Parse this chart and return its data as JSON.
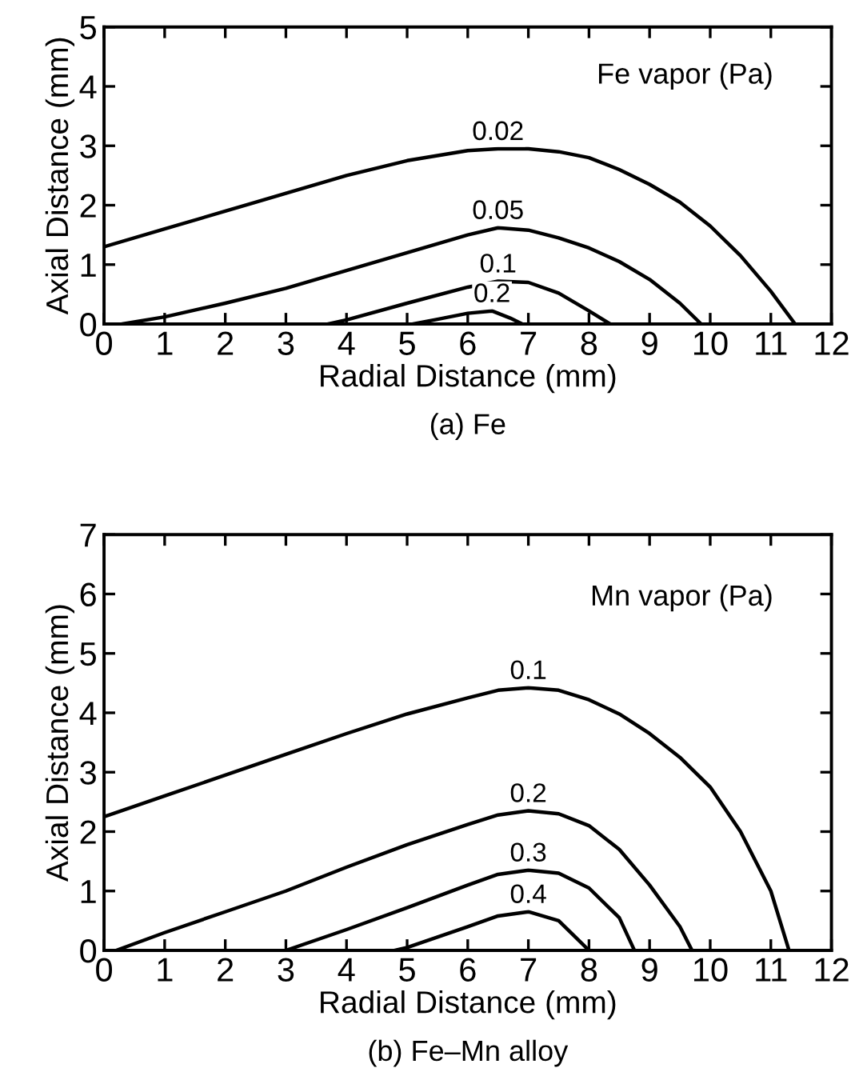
{
  "chart_data": [
    {
      "type": "line",
      "title": "(a) Fe",
      "xlabel": "Radial Distance (mm)",
      "ylabel": "Axial Distance (mm)",
      "annotations": [
        "Fe vapor (Pa)"
      ],
      "xlim": [
        0,
        12
      ],
      "ylim": [
        0,
        5
      ],
      "xticks": [
        0,
        1,
        2,
        3,
        4,
        5,
        6,
        7,
        8,
        9,
        10,
        11,
        12
      ],
      "yticks": [
        0,
        1,
        2,
        3,
        4,
        5
      ],
      "grid": false,
      "legend": false,
      "marker": "none",
      "line_style": "solid",
      "series": [
        {
          "name": "0.02",
          "color": "#000000",
          "x": [
            0,
            1,
            2,
            3,
            4,
            5,
            6,
            6.5,
            7,
            7.5,
            8,
            8.5,
            9,
            9.5,
            10,
            10.5,
            11,
            11.4
          ],
          "values": [
            1.3,
            1.6,
            1.9,
            2.2,
            2.5,
            2.75,
            2.92,
            2.95,
            2.95,
            2.9,
            2.8,
            2.6,
            2.35,
            2.05,
            1.65,
            1.15,
            0.55,
            0
          ]
        },
        {
          "name": "0.05",
          "color": "#000000",
          "x": [
            0.3,
            1,
            2,
            3,
            4,
            5,
            6,
            6.5,
            7,
            7.5,
            8,
            8.5,
            9,
            9.5,
            9.85
          ],
          "values": [
            0,
            0.12,
            0.35,
            0.6,
            0.9,
            1.2,
            1.5,
            1.62,
            1.58,
            1.45,
            1.28,
            1.05,
            0.75,
            0.35,
            0
          ]
        },
        {
          "name": "0.1",
          "color": "#000000",
          "x": [
            3.7,
            4,
            5,
            6,
            6.5,
            7,
            7.5,
            8,
            8.35
          ],
          "values": [
            0,
            0.07,
            0.35,
            0.62,
            0.72,
            0.7,
            0.52,
            0.22,
            0
          ]
        },
        {
          "name": "0.2",
          "color": "#000000",
          "x": [
            5.1,
            5.5,
            6,
            6.4,
            6.7,
            6.9
          ],
          "values": [
            0,
            0.08,
            0.18,
            0.22,
            0.1,
            0
          ]
        }
      ]
    },
    {
      "type": "line",
      "title": "(b) Fe–Mn alloy",
      "xlabel": "Radial Distance (mm)",
      "ylabel": "Axial Distance (mm)",
      "annotations": [
        "Mn vapor (Pa)"
      ],
      "xlim": [
        0,
        12
      ],
      "ylim": [
        0,
        7
      ],
      "xticks": [
        0,
        1,
        2,
        3,
        4,
        5,
        6,
        7,
        8,
        9,
        10,
        11,
        12
      ],
      "yticks": [
        0,
        1,
        2,
        3,
        4,
        5,
        6,
        7
      ],
      "grid": false,
      "legend": false,
      "marker": "none",
      "line_style": "solid",
      "series": [
        {
          "name": "0.1",
          "color": "#000000",
          "x": [
            0,
            1,
            2,
            3,
            4,
            5,
            6,
            6.5,
            7,
            7.5,
            8,
            8.5,
            9,
            9.5,
            10,
            10.5,
            11,
            11.3
          ],
          "values": [
            2.25,
            2.6,
            2.95,
            3.3,
            3.65,
            3.98,
            4.25,
            4.38,
            4.42,
            4.38,
            4.22,
            3.98,
            3.65,
            3.25,
            2.75,
            2.0,
            1.0,
            0
          ]
        },
        {
          "name": "0.2",
          "color": "#000000",
          "x": [
            0.2,
            1,
            2,
            3,
            4,
            5,
            6,
            6.5,
            7,
            7.5,
            8,
            8.5,
            9,
            9.5,
            9.7
          ],
          "values": [
            0,
            0.3,
            0.65,
            1.0,
            1.4,
            1.78,
            2.12,
            2.28,
            2.35,
            2.3,
            2.1,
            1.7,
            1.1,
            0.4,
            0
          ]
        },
        {
          "name": "0.3",
          "color": "#000000",
          "x": [
            3,
            4,
            5,
            6,
            6.5,
            7,
            7.5,
            8,
            8.5,
            8.75
          ],
          "values": [
            0,
            0.35,
            0.72,
            1.1,
            1.28,
            1.35,
            1.3,
            1.05,
            0.55,
            0
          ]
        },
        {
          "name": "0.4",
          "color": "#000000",
          "x": [
            4.8,
            5,
            6,
            6.5,
            7,
            7.5,
            7.8,
            8
          ],
          "values": [
            0,
            0.05,
            0.4,
            0.58,
            0.65,
            0.5,
            0.2,
            0
          ]
        }
      ]
    }
  ]
}
